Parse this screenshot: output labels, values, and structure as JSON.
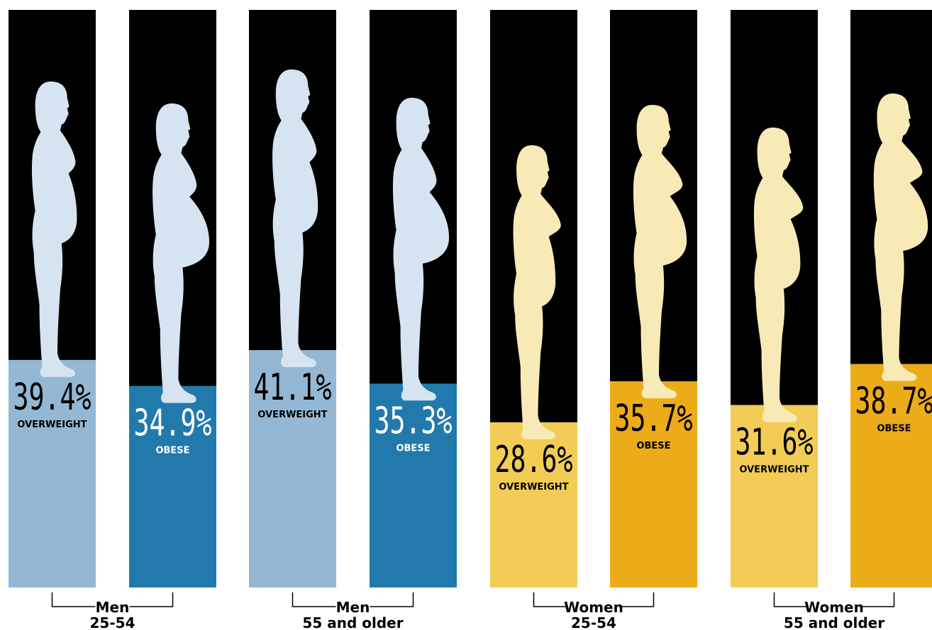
{
  "colors": {
    "background": "#000000",
    "men_overweight": "#94b8d3",
    "men_obese": "#2279ab",
    "men_figure": "#d6e3f0",
    "women_overweight": "#f2cc55",
    "women_obese": "#ecab18",
    "women_figure": "#f8eab7",
    "text": "#000000",
    "label_light": "#ffffff"
  },
  "chart_data": {
    "type": "bar",
    "ylim": [
      0,
      100
    ],
    "bars": [
      {
        "group": "men-25-54",
        "value": 39.4,
        "display": "39.4%",
        "label": "OVERWEIGHT",
        "color": "#94b8d3",
        "figure": "men",
        "text_color": "#000000"
      },
      {
        "group": "men-25-54",
        "value": 34.9,
        "display": "34.9%",
        "label": "OBESE",
        "color": "#2279ab",
        "figure": "men",
        "text_color": "#ffffff"
      },
      {
        "group": "men-55-older",
        "value": 41.1,
        "display": "41.1%",
        "label": "OVERWEIGHT",
        "color": "#94b8d3",
        "figure": "men",
        "text_color": "#000000"
      },
      {
        "group": "men-55-older",
        "value": 35.3,
        "display": "35.3%",
        "label": "OBESE",
        "color": "#2279ab",
        "figure": "men",
        "text_color": "#ffffff"
      },
      {
        "group": "women-25-54",
        "value": 28.6,
        "display": "28.6%",
        "label": "OVERWEIGHT",
        "color": "#f2cc55",
        "figure": "women",
        "text_color": "#000000"
      },
      {
        "group": "women-25-54",
        "value": 35.7,
        "display": "35.7%",
        "label": "OBESE",
        "color": "#ecab18",
        "figure": "women",
        "text_color": "#000000"
      },
      {
        "group": "women-55-older",
        "value": 31.6,
        "display": "31.6%",
        "label": "OVERWEIGHT",
        "color": "#f2cc55",
        "figure": "women",
        "text_color": "#000000"
      },
      {
        "group": "women-55-older",
        "value": 38.7,
        "display": "38.7%",
        "label": "OBESE",
        "color": "#ecab18",
        "figure": "women",
        "text_color": "#000000"
      }
    ],
    "groups": [
      {
        "id": "men-25-54",
        "line1": "Men",
        "line2": "25-54"
      },
      {
        "id": "men-55-older",
        "line1": "Men",
        "line2": "55 and older"
      },
      {
        "id": "women-25-54",
        "line1": "Women",
        "line2": "25-54"
      },
      {
        "id": "women-55-older",
        "line1": "Women",
        "line2": "55 and older"
      }
    ]
  }
}
